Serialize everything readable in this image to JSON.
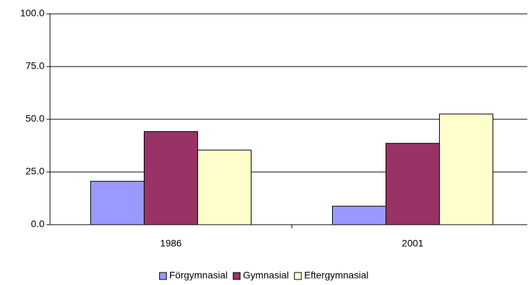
{
  "chart_data": {
    "type": "bar",
    "categories": [
      "1986",
      "2001"
    ],
    "series": [
      {
        "name": "Förgymnasial",
        "color": "#9999ff",
        "values": [
          20.6,
          8.8
        ]
      },
      {
        "name": "Gymnasial",
        "color": "#993366",
        "values": [
          44.2,
          38.6
        ]
      },
      {
        "name": "Eftergymnasial",
        "color": "#ffffcc",
        "values": [
          35.4,
          52.5
        ]
      }
    ],
    "ylim": [
      0,
      100
    ],
    "yticks": [
      {
        "value": 0,
        "label": "0.0"
      },
      {
        "value": 25,
        "label": "25.0"
      },
      {
        "value": 50,
        "label": "50.0"
      },
      {
        "value": 75,
        "label": "75.0"
      },
      {
        "value": 100,
        "label": "100.0"
      }
    ],
    "grid": true,
    "legend": "bottom"
  }
}
